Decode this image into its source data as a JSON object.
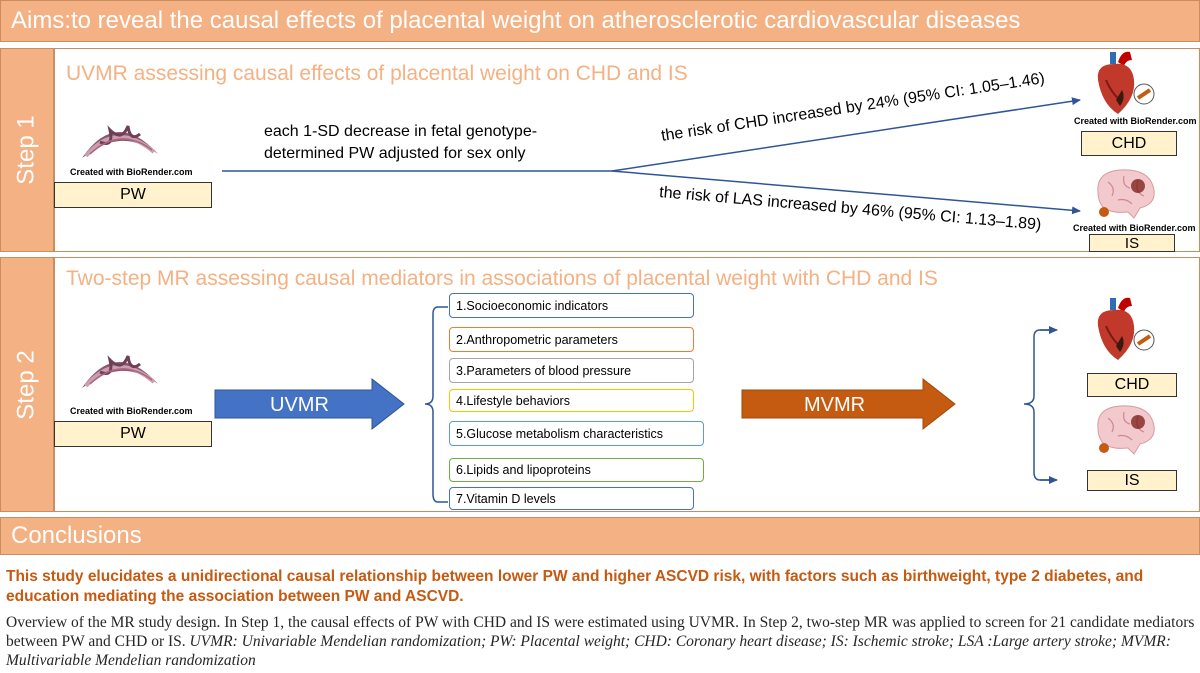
{
  "aims": "Aims:to reveal the causal effects of placental weight on atherosclerotic cardiovascular diseases",
  "step1": {
    "tab": "Step 1",
    "title": "UVMR assessing causal effects of placental weight on CHD and IS",
    "exposure_credit": "Created with BioRender.com",
    "exposure_label": "PW",
    "description_line1": "each 1-SD decrease in fetal genotype-",
    "description_line2": "determined PW adjusted for sex only",
    "chd_result": "the risk of CHD increased by 24% (95% CI: 1.05–1.46)",
    "las_result": "the risk of LAS increased by 46% (95% CI: 1.13–1.89)",
    "chd_credit": "Created with BioRender.com",
    "chd_label": "CHD",
    "is_credit": "Created with BioRender.com",
    "is_label": "IS"
  },
  "step2": {
    "tab": "Step 2",
    "title": "Two-step MR assessing causal mediators in associations of placental weight with CHD and IS",
    "exposure_credit": "Created with BioRender.com",
    "exposure_label": "PW",
    "uvmr_label": "UVMR",
    "mvmr_label": "MVMR",
    "chd_label": "CHD",
    "is_label": "IS",
    "mediators": [
      {
        "label": "1.Socioeconomic indicators",
        "color": "#4472c4"
      },
      {
        "label": "2.Anthropometric parameters",
        "color": "#ed7d31"
      },
      {
        "label": "3.Parameters of blood pressure",
        "color": "#a5a5a5"
      },
      {
        "label": "4.Lifestyle behaviors",
        "color": "#ffc000"
      },
      {
        "label": "5.Glucose metabolism characteristics",
        "color": "#5b9bd5"
      },
      {
        "label": "6.Lipids and lipoproteins",
        "color": "#70ad47"
      },
      {
        "label": "7.Vitamin D levels",
        "color": "#4472c4"
      }
    ]
  },
  "conclusions": {
    "heading": "Conclusions",
    "text": "This study elucidates a unidirectional causal relationship between lower PW and higher ASCVD risk, with factors such as birthweight, type 2 diabetes, and education mediating the association between PW and ASCVD."
  },
  "caption": {
    "plain": "Overview of the MR study design. In Step 1, the causal effects of PW with CHD and IS were estimated using UVMR. In Step 2, two-step MR was applied to screen for 21 candidate mediators between PW and CHD or IS. ",
    "italic": "UVMR: Univariable Mendelian randomization; PW: Placental weight; CHD: Coronary heart disease; IS: Ischemic stroke; LSA :Large artery stroke; MVMR: Multivariable Mendelian randomization"
  },
  "colors": {
    "banner": "#f4b183",
    "label_box": "#fff2cc",
    "line": "#2f5597",
    "uvmr_arrow": "#4472c4",
    "mvmr_arrow": "#c55a11",
    "conclusion_text": "#c55a11"
  },
  "icons": [
    "placenta-icon",
    "heart-icon",
    "brain-icon"
  ]
}
